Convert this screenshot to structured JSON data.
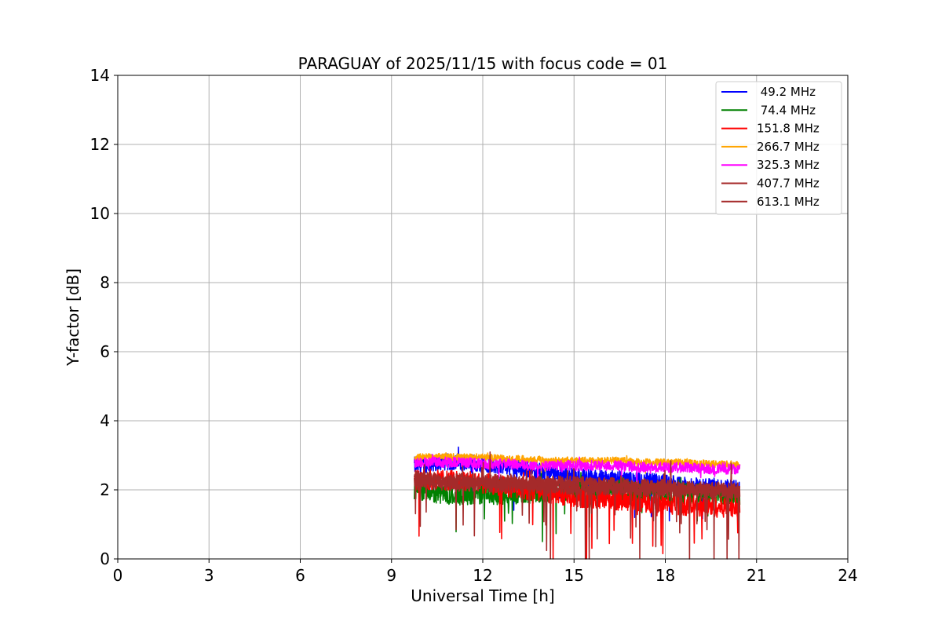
{
  "chart_data": {
    "type": "line",
    "title": "PARAGUAY of 2025/11/15 with focus code = 01",
    "xlabel": "Universal Time [h]",
    "ylabel": "Y-factor [dB]",
    "xlim": [
      0,
      24
    ],
    "ylim": [
      0,
      14
    ],
    "xticks": [
      0,
      3,
      6,
      9,
      12,
      15,
      18,
      21,
      24
    ],
    "yticks": [
      0,
      2,
      4,
      6,
      8,
      10,
      12,
      14
    ],
    "grid": true,
    "legend_position": "top-right",
    "x": [
      9.75,
      10.5,
      11.25,
      12.0,
      12.75,
      13.5,
      14.25,
      15.0,
      15.75,
      16.5,
      17.25,
      18.0,
      18.75,
      19.5,
      20.25,
      20.45
    ],
    "series": [
      {
        "name": " 49.2 MHz",
        "color": "#0000ff",
        "values": [
          2.7,
          2.8,
          2.8,
          2.75,
          2.7,
          2.6,
          2.45,
          2.4,
          2.35,
          2.3,
          2.25,
          2.2,
          2.1,
          2.1,
          2.05,
          2.0
        ]
      },
      {
        "name": " 74.4 MHz",
        "color": "#008000",
        "values": [
          2.0,
          1.9,
          1.85,
          1.9,
          1.85,
          1.9,
          1.95,
          2.0,
          1.95,
          1.95,
          1.95,
          1.9,
          1.9,
          1.85,
          1.85,
          1.85
        ]
      },
      {
        "name": "151.8 MHz",
        "color": "#ff0000",
        "values": [
          2.3,
          2.3,
          2.25,
          2.2,
          2.1,
          2.0,
          1.9,
          1.8,
          1.75,
          1.7,
          1.65,
          1.6,
          1.55,
          1.5,
          1.5,
          1.5
        ]
      },
      {
        "name": "266.7 MHz",
        "color": "#ffa500",
        "values": [
          2.95,
          2.95,
          2.95,
          2.95,
          2.9,
          2.9,
          2.85,
          2.85,
          2.85,
          2.85,
          2.8,
          2.8,
          2.8,
          2.75,
          2.75,
          2.7
        ]
      },
      {
        "name": "325.3 MHz",
        "color": "#ff00ff",
        "values": [
          2.8,
          2.8,
          2.8,
          2.75,
          2.75,
          2.7,
          2.7,
          2.7,
          2.7,
          2.7,
          2.65,
          2.65,
          2.65,
          2.6,
          2.6,
          2.6
        ]
      },
      {
        "name": "407.7 MHz",
        "color": "#a52a2a",
        "values": [
          2.35,
          2.3,
          2.3,
          2.25,
          2.25,
          2.2,
          2.2,
          2.2,
          2.15,
          2.15,
          2.1,
          2.1,
          2.05,
          2.05,
          2.0,
          2.0
        ]
      },
      {
        "name": "613.1 MHz",
        "color": "#a52a2a",
        "values": [
          2.2,
          2.2,
          2.15,
          2.15,
          2.1,
          2.1,
          2.1,
          2.05,
          2.05,
          2.05,
          2.0,
          2.0,
          2.0,
          1.95,
          1.95,
          1.95
        ]
      }
    ]
  }
}
